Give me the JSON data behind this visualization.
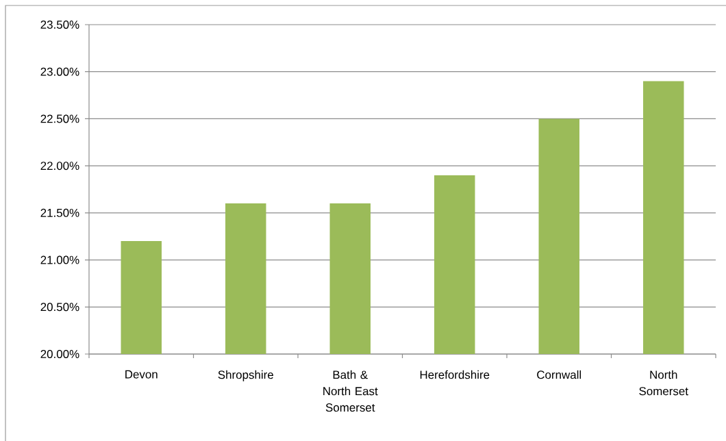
{
  "chart_data": {
    "type": "bar",
    "categories": [
      "Devon",
      "Shropshire",
      "Bath & North East Somerset",
      "Herefordshire",
      "Cornwall",
      "North Somerset"
    ],
    "values": [
      21.2,
      21.6,
      21.6,
      21.9,
      22.5,
      22.9
    ],
    "color": "#9bbb59",
    "ylim": [
      20,
      23.5
    ],
    "yticks": [
      {
        "value": 20,
        "label": "20.00%"
      },
      {
        "value": 20.5,
        "label": "20.50%"
      },
      {
        "value": 21,
        "label": "21.00%"
      },
      {
        "value": 21.5,
        "label": "21.50%"
      },
      {
        "value": 22,
        "label": "22.00%"
      },
      {
        "value": 22.5,
        "label": "22.50%"
      },
      {
        "value": 23,
        "label": "23.00%"
      },
      {
        "value": 23.5,
        "label": "23.50%"
      }
    ],
    "grid": "y"
  }
}
